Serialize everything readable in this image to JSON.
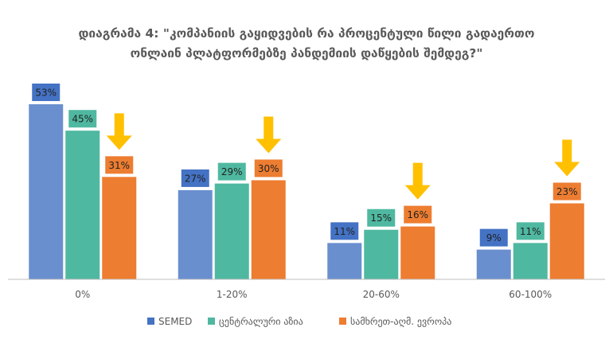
{
  "chart_data": {
    "type": "bar",
    "title_lines": [
      "დიაგრამა 4: \"კომპანიის გაყიდვების რა პროცენტული წილი გადაერთო",
      "ონლაინ პლატფორმებზე პანდემიის დაწყების შემდეგ?\""
    ],
    "categories": [
      "0%",
      "1-20%",
      "20-60%",
      "60-100%"
    ],
    "series": [
      {
        "name": "SEMED",
        "values": [
          53,
          27,
          11,
          9
        ],
        "labels": [
          "53%",
          "27%",
          "11%",
          "9%"
        ],
        "color": "#6a8fcf",
        "label_bg": "#4472c4"
      },
      {
        "name": "ცენტრალური აზია",
        "values": [
          45,
          29,
          15,
          11
        ],
        "labels": [
          "45%",
          "29%",
          "15%",
          "11%"
        ],
        "color": "#4fb8a0",
        "label_bg": "#4fb8a0"
      },
      {
        "name": "სამხრეთ-აღმ. ევროპა",
        "values": [
          31,
          30,
          16,
          23
        ],
        "labels": [
          "31%",
          "30%",
          "16%",
          "23%"
        ],
        "color": "#ed7d31",
        "label_bg": "#ed7d31"
      }
    ],
    "ylim": [
      0,
      53
    ],
    "grid": false,
    "legend_position": "bottom",
    "annotations": "downward arrow above the third series bar in each category",
    "arrow_color": "#ffc000",
    "axis_color": "#bfbfbf"
  }
}
